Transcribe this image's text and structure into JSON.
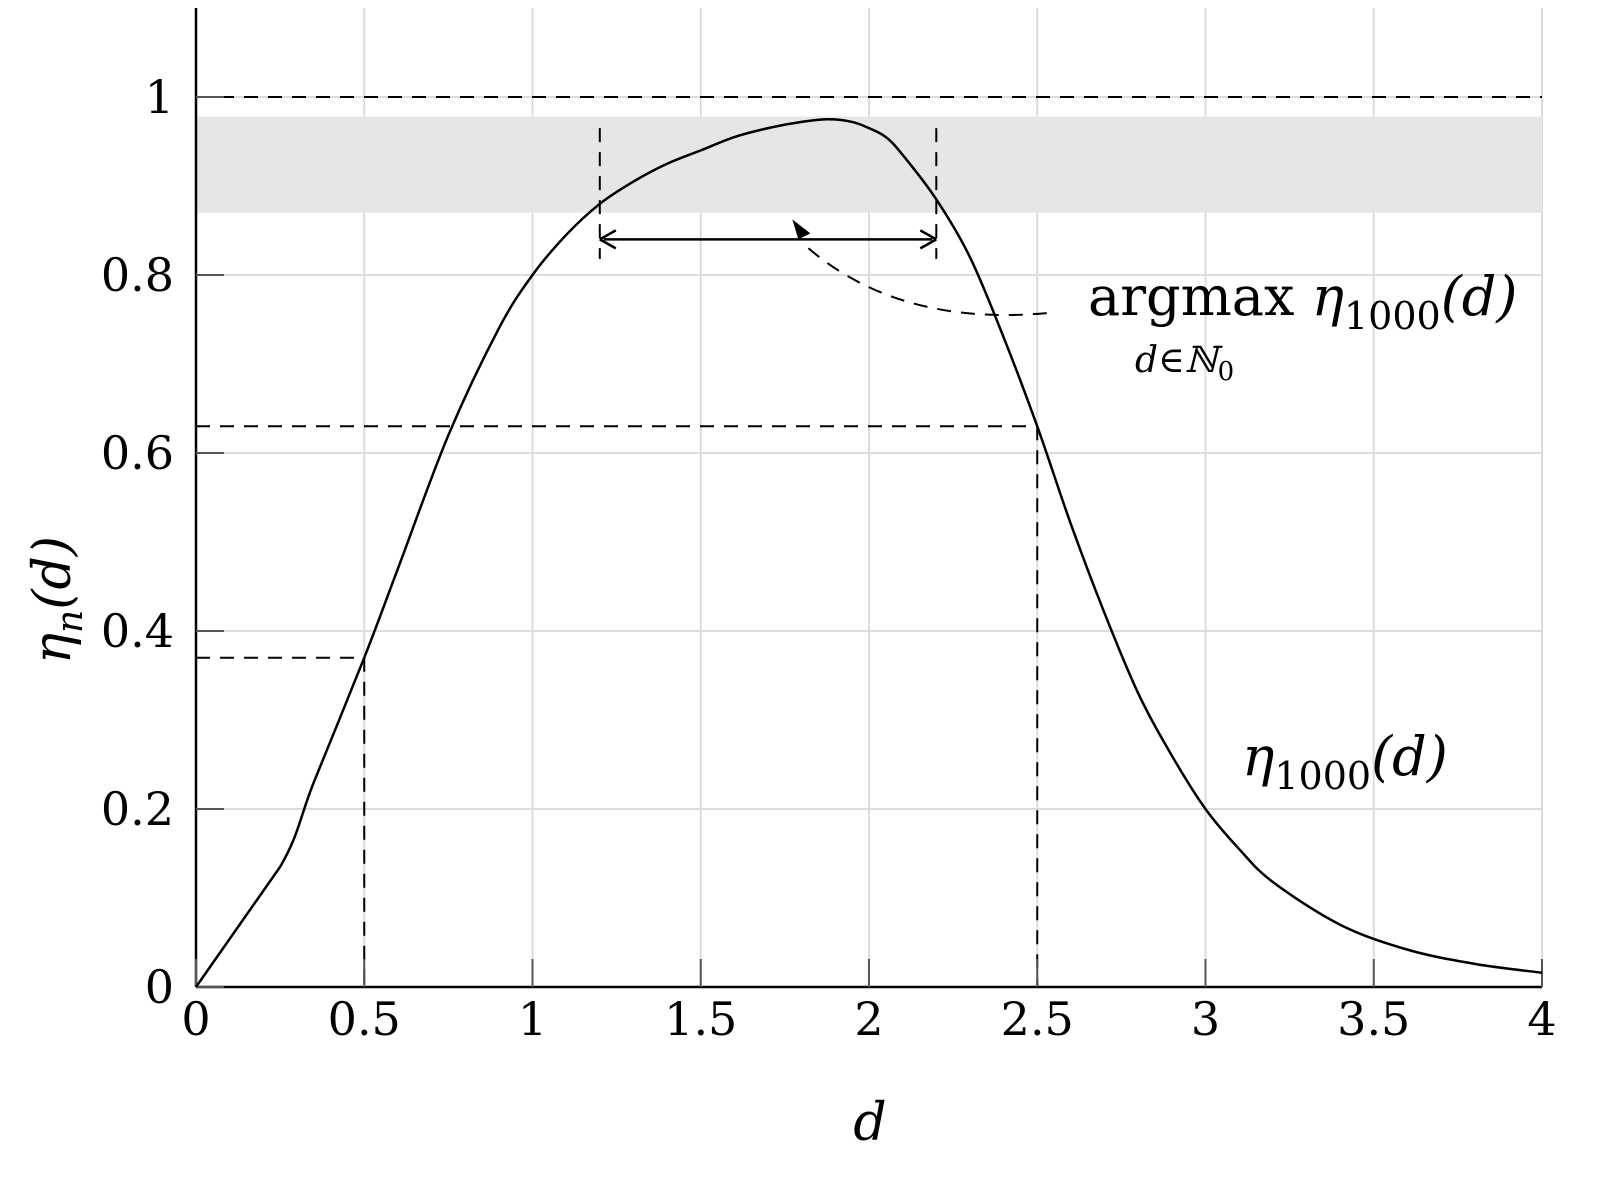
{
  "chart_data": {
    "type": "line",
    "title": "",
    "xlabel": "d",
    "ylabel": "η_n(d)",
    "xlim": [
      0,
      4
    ],
    "ylim": [
      0,
      1.1
    ],
    "grid": true,
    "x_ticks": [
      "0",
      "0.5",
      "1",
      "1.5",
      "2",
      "2.5",
      "3",
      "3.5",
      "4"
    ],
    "y_ticks": [
      "0",
      "0.2",
      "0.4",
      "0.6",
      "0.8",
      "1"
    ],
    "series": [
      {
        "name": "η1000(d)",
        "x": [
          0,
          0.25,
          0.35,
          0.5,
          0.6,
          0.75,
          0.9,
          1.0,
          1.1,
          1.2,
          1.3,
          1.4,
          1.5,
          1.6,
          1.7,
          1.8,
          1.88,
          1.95,
          2.0,
          2.05,
          2.1,
          2.2,
          2.3,
          2.4,
          2.5,
          2.6,
          2.7,
          2.8,
          2.9,
          3.0,
          3.1,
          3.2,
          3.4,
          3.6,
          3.8,
          4.0
        ],
        "y": [
          0,
          0.135,
          0.23,
          0.37,
          0.47,
          0.62,
          0.74,
          0.8,
          0.845,
          0.88,
          0.905,
          0.925,
          0.94,
          0.955,
          0.965,
          0.972,
          0.975,
          0.972,
          0.965,
          0.955,
          0.935,
          0.885,
          0.82,
          0.73,
          0.63,
          0.52,
          0.42,
          0.33,
          0.26,
          0.2,
          0.155,
          0.118,
          0.07,
          0.042,
          0.026,
          0.016
        ]
      }
    ],
    "reference_lines": {
      "horizontal": [
        1.0
      ],
      "dashed_points": [
        {
          "x": 0.5,
          "y": 0.37
        },
        {
          "x": 2.5,
          "y": 0.63
        }
      ],
      "interval": {
        "x_start": 1.2,
        "x_end": 2.2
      }
    },
    "shaded_band": {
      "y_min": 0.87,
      "y_max": 0.978
    },
    "annotations": {
      "argmax": {
        "main": "argmax",
        "eta": "η",
        "sub": "1000",
        "arg": "(d)",
        "under": "d∈ℕ",
        "under_sub": "0"
      },
      "curve_label": {
        "eta": "η",
        "sub": "1000",
        "arg": "(d)"
      }
    }
  }
}
